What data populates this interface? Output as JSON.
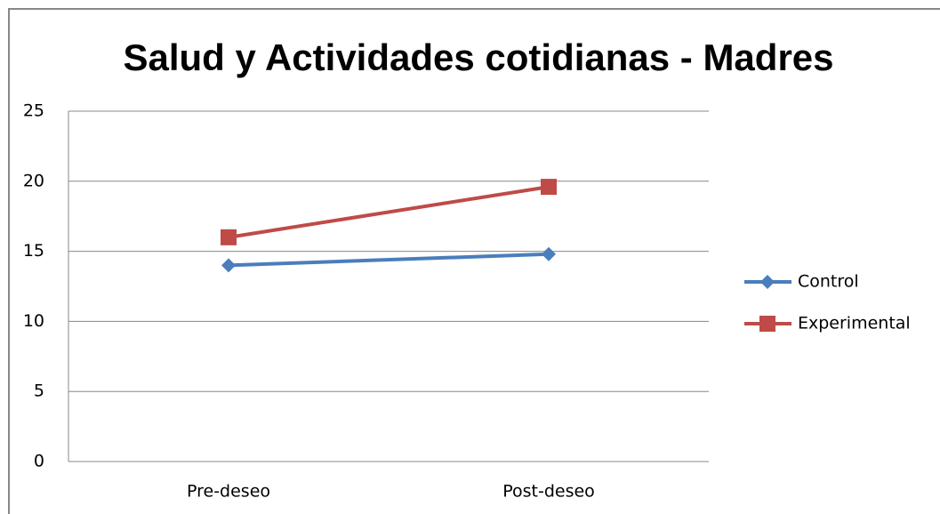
{
  "chart_data": {
    "type": "line",
    "title": "Salud y Actividades cotidianas - Madres",
    "categories": [
      "Pre-deseo",
      "Post-deseo"
    ],
    "series": [
      {
        "name": "Control",
        "color": "#4a7ebb",
        "marker": "diamond",
        "values": [
          14,
          14.8
        ]
      },
      {
        "name": "Experimental",
        "color": "#be4b48",
        "marker": "square",
        "values": [
          16,
          19.6
        ]
      }
    ],
    "ylim": [
      0,
      25
    ],
    "yticks": [
      0,
      5,
      10,
      15,
      20,
      25
    ],
    "grid": true,
    "legend": "right"
  }
}
